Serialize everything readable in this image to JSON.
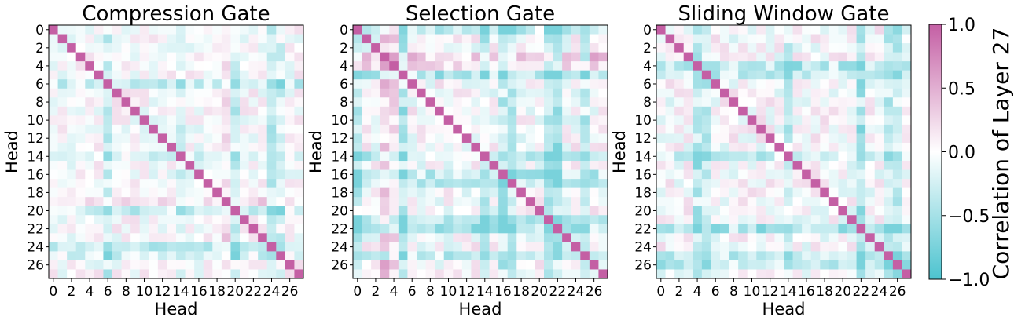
{
  "chart_data": [
    {
      "type": "heatmap",
      "title": "Compression Gate",
      "xlabel": "Head",
      "ylabel": "Head",
      "size": 28,
      "x_ticks": [
        "0",
        "2",
        "4",
        "6",
        "8",
        "10",
        "12",
        "14",
        "16",
        "18",
        "20",
        "22",
        "24",
        "26"
      ],
      "y_ticks": [
        "0",
        "2",
        "4",
        "6",
        "8",
        "10",
        "12",
        "14",
        "16",
        "18",
        "20",
        "22",
        "24",
        "26"
      ],
      "diagonal": 1.0,
      "bands": [
        {
          "head": 6,
          "value": -0.35
        },
        {
          "head": 14,
          "value": -0.25
        },
        {
          "head": 19,
          "value": 0.25
        },
        {
          "head": 20,
          "value": -0.3
        },
        {
          "head": 24,
          "value": -0.35
        },
        {
          "head": 25,
          "value": -0.3
        }
      ],
      "seed": 11,
      "noise": 0.22
    },
    {
      "type": "heatmap",
      "title": "Selection Gate",
      "xlabel": "Head",
      "ylabel": "Head",
      "size": 28,
      "x_ticks": [
        "0",
        "2",
        "4",
        "6",
        "8",
        "10",
        "12",
        "14",
        "16",
        "18",
        "20",
        "22",
        "24",
        "26"
      ],
      "y_ticks": [
        "0",
        "2",
        "4",
        "6",
        "8",
        "10",
        "12",
        "14",
        "16",
        "18",
        "20",
        "22",
        "24",
        "26"
      ],
      "diagonal": 1.0,
      "bands": [
        {
          "head": 0,
          "value": -0.4
        },
        {
          "head": 3,
          "value": 0.35
        },
        {
          "head": 4,
          "value": 0.3
        },
        {
          "head": 5,
          "value": -0.45
        },
        {
          "head": 14,
          "value": -0.35
        },
        {
          "head": 16,
          "value": -0.4
        },
        {
          "head": 17,
          "value": -0.45
        },
        {
          "head": 21,
          "value": -0.5
        },
        {
          "head": 22,
          "value": -0.5
        },
        {
          "head": 25,
          "value": -0.45
        }
      ],
      "seed": 23,
      "noise": 0.25
    },
    {
      "type": "heatmap",
      "title": "Sliding Window Gate",
      "xlabel": "Head",
      "ylabel": "Head",
      "size": 28,
      "x_ticks": [
        "0",
        "2",
        "4",
        "6",
        "8",
        "10",
        "12",
        "14",
        "16",
        "18",
        "20",
        "22",
        "24",
        "26"
      ],
      "y_ticks": [
        "0",
        "2",
        "4",
        "6",
        "8",
        "10",
        "12",
        "14",
        "16",
        "18",
        "20",
        "22",
        "24",
        "26"
      ],
      "diagonal": 1.0,
      "bands": [
        {
          "head": 4,
          "value": -0.45
        },
        {
          "head": 5,
          "value": -0.35
        },
        {
          "head": 14,
          "value": -0.35
        },
        {
          "head": 22,
          "value": -0.5
        },
        {
          "head": 25,
          "value": -0.4
        },
        {
          "head": 26,
          "value": -0.45
        }
      ],
      "seed": 37,
      "noise": 0.25
    }
  ],
  "colorbar": {
    "label": "Correlation of Layer 27",
    "ticks": [
      "1.0",
      "0.5",
      "0.0",
      "−0.5",
      "−1.0"
    ],
    "tick_values": [
      1.0,
      0.5,
      0.0,
      -0.5,
      -1.0
    ],
    "range": [
      -1.0,
      1.0
    ]
  },
  "colors": {
    "negative": "#4cc3cf",
    "zero": "#ffffff",
    "positive": "#c45fa4"
  }
}
